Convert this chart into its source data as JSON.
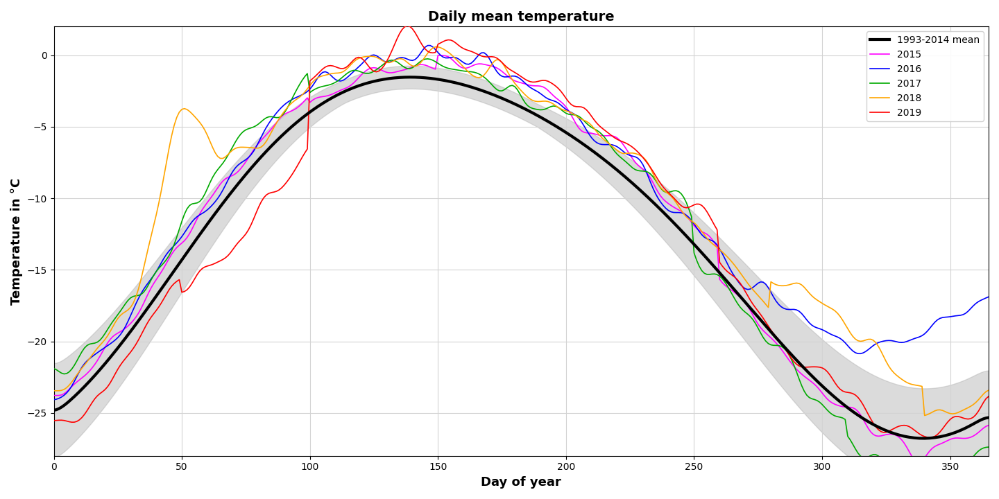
{
  "title": "Daily mean temperature",
  "xlabel": "Day of year",
  "ylabel": "Temperature in °C",
  "ylim": [
    -28,
    2
  ],
  "xlim": [
    0,
    365
  ],
  "xticks": [
    0,
    50,
    100,
    150,
    200,
    250,
    300,
    350
  ],
  "yticks": [
    0,
    -5,
    -10,
    -15,
    -20,
    -25
  ],
  "mean_color": "#000000",
  "shade_color": "#b0b0b0",
  "year_colors": {
    "2015": "#ff00ff",
    "2016": "#0000ff",
    "2017": "#00aa00",
    "2018": "#ffa500",
    "2019": "#ff0000"
  },
  "mean_lw": 3.0,
  "year_lw": 1.2,
  "legend_loc": "upper right",
  "figsize": [
    14.4,
    7.2
  ],
  "dpi": 100
}
